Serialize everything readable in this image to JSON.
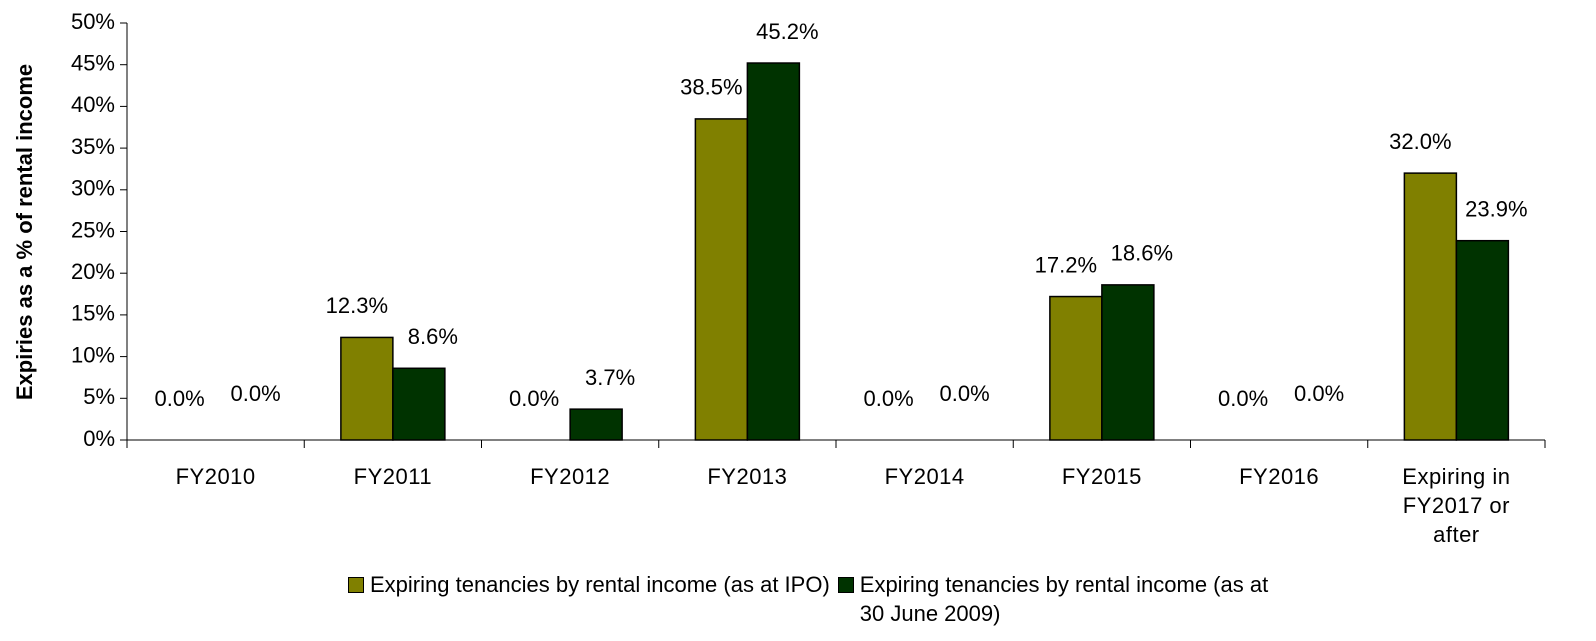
{
  "chart_data": {
    "type": "bar",
    "y_axis_label": "Expiries as a % of rental income",
    "categories": [
      "FY2010",
      "FY2011",
      "FY2012",
      "FY2013",
      "FY2014",
      "FY2015",
      "FY2016",
      "Expiring in FY2017 or after"
    ],
    "series": [
      {
        "name": "Expiring tenancies by rental income (as at IPO)",
        "color": "#808000",
        "values": [
          0,
          12.3,
          0,
          38.5,
          0,
          17.2,
          0,
          32.0
        ],
        "value_labels": [
          "0.0%",
          "12.3%",
          "0.0%",
          "38.5%",
          "0.0%",
          "17.2%",
          "0.0%",
          "32.0%"
        ]
      },
      {
        "name": "Expiring tenancies by rental income (as at 30 June 2009)",
        "color": "#003300",
        "values": [
          0,
          8.6,
          3.7,
          45.2,
          0,
          18.6,
          0,
          23.9
        ],
        "value_labels": [
          "0.0%",
          "8.6%",
          "3.7%",
          "45.2%",
          "0.0%",
          "18.6%",
          "0.0%",
          "23.9%"
        ]
      }
    ],
    "ylim": [
      0,
      50
    ],
    "yticks": [
      {
        "value": 0,
        "label": "0%"
      },
      {
        "value": 5,
        "label": "5%"
      },
      {
        "value": 10,
        "label": "10%"
      },
      {
        "value": 15,
        "label": "15%"
      },
      {
        "value": 20,
        "label": "20%"
      },
      {
        "value": 25,
        "label": "25%"
      },
      {
        "value": 30,
        "label": "30%"
      },
      {
        "value": 35,
        "label": "35%"
      },
      {
        "value": 40,
        "label": "40%"
      },
      {
        "value": 45,
        "label": "45%"
      },
      {
        "value": 50,
        "label": "50%"
      }
    ],
    "grid": false,
    "legend": "bottom"
  }
}
